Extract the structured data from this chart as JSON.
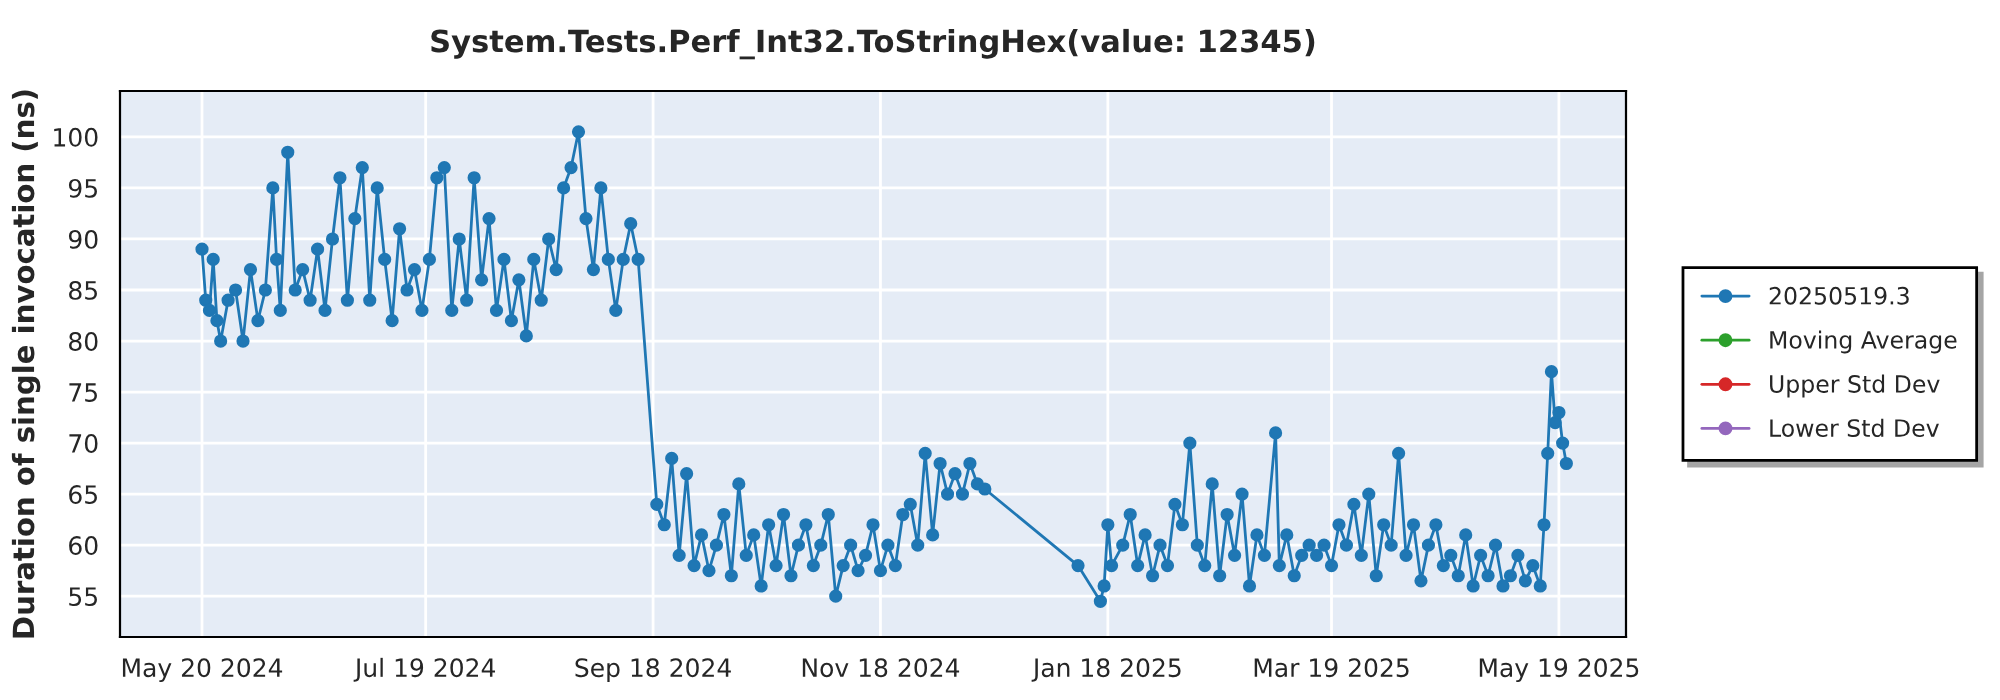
{
  "chart_data": {
    "type": "line",
    "title": "System.Tests.Perf_Int32.ToStringHex(value: 12345)",
    "ylabel": "Duration of single invocation (ns)",
    "x": [
      "2024-05-20",
      "2024-05-21",
      "2024-05-22",
      "2024-05-23",
      "2024-05-24",
      "2024-05-25",
      "2024-05-27",
      "2024-05-29",
      "2024-05-31",
      "2024-06-02",
      "2024-06-04",
      "2024-06-06",
      "2024-06-08",
      "2024-06-09",
      "2024-06-10",
      "2024-06-12",
      "2024-06-14",
      "2024-06-16",
      "2024-06-18",
      "2024-06-20",
      "2024-06-22",
      "2024-06-24",
      "2024-06-26",
      "2024-06-28",
      "2024-06-30",
      "2024-07-02",
      "2024-07-04",
      "2024-07-06",
      "2024-07-08",
      "2024-07-10",
      "2024-07-12",
      "2024-07-14",
      "2024-07-16",
      "2024-07-18",
      "2024-07-20",
      "2024-07-22",
      "2024-07-24",
      "2024-07-26",
      "2024-07-28",
      "2024-07-30",
      "2024-08-01",
      "2024-08-03",
      "2024-08-05",
      "2024-08-07",
      "2024-08-09",
      "2024-08-11",
      "2024-08-13",
      "2024-08-15",
      "2024-08-17",
      "2024-08-19",
      "2024-08-21",
      "2024-08-23",
      "2024-08-25",
      "2024-08-27",
      "2024-08-29",
      "2024-08-31",
      "2024-09-02",
      "2024-09-04",
      "2024-09-06",
      "2024-09-08",
      "2024-09-10",
      "2024-09-12",
      "2024-09-14",
      "2024-09-19",
      "2024-09-21",
      "2024-09-23",
      "2024-09-25",
      "2024-09-27",
      "2024-09-29",
      "2024-10-01",
      "2024-10-03",
      "2024-10-05",
      "2024-10-07",
      "2024-10-09",
      "2024-10-11",
      "2024-10-13",
      "2024-10-15",
      "2024-10-17",
      "2024-10-19",
      "2024-10-21",
      "2024-10-23",
      "2024-10-25",
      "2024-10-27",
      "2024-10-29",
      "2024-10-31",
      "2024-11-02",
      "2024-11-04",
      "2024-11-06",
      "2024-11-08",
      "2024-11-10",
      "2024-11-12",
      "2024-11-14",
      "2024-11-16",
      "2024-11-18",
      "2024-11-20",
      "2024-11-22",
      "2024-11-24",
      "2024-11-26",
      "2024-11-28",
      "2024-11-30",
      "2024-12-02",
      "2024-12-04",
      "2024-12-06",
      "2024-12-08",
      "2024-12-10",
      "2024-12-12",
      "2024-12-14",
      "2024-12-16",
      "2025-01-10",
      "2025-01-16",
      "2025-01-17",
      "2025-01-18",
      "2025-01-19",
      "2025-01-22",
      "2025-01-24",
      "2025-01-26",
      "2025-01-28",
      "2025-01-30",
      "2025-02-01",
      "2025-02-03",
      "2025-02-05",
      "2025-02-07",
      "2025-02-09",
      "2025-02-11",
      "2025-02-13",
      "2025-02-15",
      "2025-02-17",
      "2025-02-19",
      "2025-02-21",
      "2025-02-23",
      "2025-02-25",
      "2025-02-27",
      "2025-03-01",
      "2025-03-04",
      "2025-03-05",
      "2025-03-07",
      "2025-03-09",
      "2025-03-11",
      "2025-03-13",
      "2025-03-15",
      "2025-03-17",
      "2025-03-19",
      "2025-03-21",
      "2025-03-23",
      "2025-03-25",
      "2025-03-27",
      "2025-03-29",
      "2025-03-31",
      "2025-04-02",
      "2025-04-04",
      "2025-04-06",
      "2025-04-08",
      "2025-04-10",
      "2025-04-12",
      "2025-04-14",
      "2025-04-16",
      "2025-04-18",
      "2025-04-20",
      "2025-04-22",
      "2025-04-24",
      "2025-04-26",
      "2025-04-28",
      "2025-04-30",
      "2025-05-02",
      "2025-05-04",
      "2025-05-06",
      "2025-05-08",
      "2025-05-10",
      "2025-05-12",
      "2025-05-14",
      "2025-05-15",
      "2025-05-16",
      "2025-05-17",
      "2025-05-18",
      "2025-05-19",
      "2025-05-20",
      "2025-05-21"
    ],
    "series": [
      {
        "name": "20250519.3",
        "color": "#1f77b4",
        "values": [
          89,
          84,
          83,
          88,
          82,
          80,
          84,
          85,
          80,
          87,
          82,
          85,
          95,
          88,
          83,
          98.5,
          85,
          87,
          84,
          89,
          83,
          90,
          96,
          84,
          92,
          97,
          84,
          95,
          88,
          82,
          91,
          85,
          87,
          83,
          88,
          96,
          97,
          83,
          90,
          84,
          96,
          86,
          92,
          83,
          88,
          82,
          86,
          80.5,
          88,
          84,
          90,
          87,
          95,
          97,
          100.5,
          92,
          87,
          95,
          88,
          83,
          88,
          91.5,
          88,
          64,
          62,
          68.5,
          59,
          67,
          58,
          61,
          57.5,
          60,
          63,
          57,
          66,
          59,
          61,
          56,
          62,
          58,
          63,
          57,
          60,
          62,
          58,
          60,
          63,
          55,
          58,
          60,
          57.5,
          59,
          62,
          57.5,
          60,
          58,
          63,
          64,
          60,
          69,
          61,
          68,
          65,
          67,
          65,
          68,
          66,
          65.5,
          58,
          54.5,
          56,
          62,
          58,
          60,
          63,
          58,
          61,
          57,
          60,
          58,
          64,
          62,
          70,
          60,
          58,
          66,
          57,
          63,
          59,
          65,
          56,
          61,
          59,
          71,
          58,
          61,
          57,
          59,
          60,
          59,
          60,
          58,
          62,
          60,
          64,
          59,
          65,
          57,
          62,
          60,
          69,
          59,
          62,
          56.5,
          60,
          62,
          58,
          59,
          57,
          61,
          56,
          59,
          57,
          60,
          56,
          57,
          59,
          56.5,
          58,
          56,
          62,
          69,
          77,
          72,
          73,
          70,
          68
        ]
      },
      {
        "name": "Moving Average",
        "color": "#2ca02c",
        "values": [
          null,
          null,
          null,
          null,
          null,
          null,
          null,
          null,
          null,
          null,
          null,
          null,
          null,
          null,
          null,
          null,
          null,
          null,
          null,
          null,
          null,
          null,
          null,
          null,
          null,
          null,
          null,
          null,
          null,
          null,
          null,
          null,
          null,
          null,
          null,
          null,
          null,
          null,
          null,
          null,
          null,
          null,
          null,
          null,
          null,
          null,
          null,
          null,
          null,
          null,
          null,
          null,
          null,
          null,
          null,
          null,
          null,
          null,
          null,
          null,
          null,
          null,
          null,
          null,
          null,
          null,
          null,
          null,
          null,
          null,
          null,
          null,
          null,
          null,
          null,
          null,
          null,
          null,
          null,
          null,
          null,
          null,
          null,
          null,
          null,
          null,
          null,
          null,
          null,
          null,
          null,
          null,
          null,
          null,
          null,
          null,
          null,
          null,
          null,
          null,
          null,
          null,
          null,
          null,
          null,
          null,
          null,
          null,
          null,
          null,
          null,
          null,
          null,
          null,
          null,
          null,
          null,
          null,
          null,
          null,
          null,
          null,
          null,
          null,
          null,
          null,
          null,
          null,
          null,
          null,
          null,
          null,
          null,
          null,
          null,
          null,
          null,
          null,
          null,
          null,
          null,
          null,
          null,
          null,
          null,
          null,
          null,
          null,
          null,
          null,
          null,
          null,
          null,
          null,
          null,
          null,
          null,
          null,
          null,
          null,
          null,
          null,
          null,
          null,
          null,
          null,
          null,
          null,
          null,
          null,
          null,
          null,
          null,
          null,
          null,
          null,
          null
        ]
      },
      {
        "name": "Upper Std Dev",
        "color": "#d62728",
        "values": [
          null,
          null,
          null,
          null,
          null,
          null,
          null,
          null,
          null,
          null,
          null,
          null,
          null,
          null,
          null,
          null,
          null,
          null,
          null,
          null,
          null,
          null,
          null,
          null,
          null,
          null,
          null,
          null,
          null,
          null,
          null,
          null,
          null,
          null,
          null,
          null,
          null,
          null,
          null,
          null,
          null,
          null,
          null,
          null,
          null,
          null,
          null,
          null,
          null,
          null,
          null,
          null,
          null,
          null,
          null,
          null,
          null,
          null,
          null,
          null,
          null,
          null,
          null,
          null,
          null,
          null,
          null,
          null,
          null,
          null,
          null,
          null,
          null,
          null,
          null,
          null,
          null,
          null,
          null,
          null,
          null,
          null,
          null,
          null,
          null,
          null,
          null,
          null,
          null,
          null,
          null,
          null,
          null,
          null,
          null,
          null,
          null,
          null,
          null,
          null,
          null,
          null,
          null,
          null,
          null,
          null,
          null,
          null,
          null,
          null,
          null,
          null,
          null,
          null,
          null,
          null,
          null,
          null,
          null,
          null,
          null,
          null,
          null,
          null,
          null,
          null,
          null,
          null,
          null,
          null,
          null,
          null,
          null,
          null,
          null,
          null,
          null,
          null,
          null,
          null,
          null,
          null,
          null,
          null,
          null,
          null,
          null,
          null,
          null,
          null,
          null,
          null,
          null,
          null,
          null,
          null,
          null,
          null,
          null,
          null,
          null,
          null,
          null,
          null,
          null,
          null,
          null,
          null,
          null,
          null,
          null,
          null,
          null,
          null,
          null,
          null,
          null
        ]
      },
      {
        "name": "Lower Std Dev",
        "color": "#9467bd",
        "values": [
          null,
          null,
          null,
          null,
          null,
          null,
          null,
          null,
          null,
          null,
          null,
          null,
          null,
          null,
          null,
          null,
          null,
          null,
          null,
          null,
          null,
          null,
          null,
          null,
          null,
          null,
          null,
          null,
          null,
          null,
          null,
          null,
          null,
          null,
          null,
          null,
          null,
          null,
          null,
          null,
          null,
          null,
          null,
          null,
          null,
          null,
          null,
          null,
          null,
          null,
          null,
          null,
          null,
          null,
          null,
          null,
          null,
          null,
          null,
          null,
          null,
          null,
          null,
          null,
          null,
          null,
          null,
          null,
          null,
          null,
          null,
          null,
          null,
          null,
          null,
          null,
          null,
          null,
          null,
          null,
          null,
          null,
          null,
          null,
          null,
          null,
          null,
          null,
          null,
          null,
          null,
          null,
          null,
          null,
          null,
          null,
          null,
          null,
          null,
          null,
          null,
          null,
          null,
          null,
          null,
          null,
          null,
          null,
          null,
          null,
          null,
          null,
          null,
          null,
          null,
          null,
          null,
          null,
          null,
          null,
          null,
          null,
          null,
          null,
          null,
          null,
          null,
          null,
          null,
          null,
          null,
          null,
          null,
          null,
          null,
          null,
          null,
          null,
          null,
          null,
          null,
          null,
          null,
          null,
          null,
          null,
          null,
          null,
          null,
          null,
          null,
          null,
          null,
          null,
          null,
          null,
          null,
          null,
          null,
          null,
          null,
          null,
          null,
          null,
          null,
          null,
          null,
          null,
          null,
          null,
          null,
          null,
          null,
          null,
          null,
          null,
          null
        ]
      }
    ],
    "xlim": [
      "2024-04-28",
      "2025-06-06"
    ],
    "xticks": [
      {
        "value": "2024-05-20",
        "label": "May 20 2024"
      },
      {
        "value": "2024-07-19",
        "label": "Jul 19 2024"
      },
      {
        "value": "2024-09-18",
        "label": "Sep 18 2024"
      },
      {
        "value": "2024-11-18",
        "label": "Nov 18 2024"
      },
      {
        "value": "2025-01-18",
        "label": "Jan 18 2025"
      },
      {
        "value": "2025-03-19",
        "label": "Mar 19 2025"
      },
      {
        "value": "2025-05-19",
        "label": "May 19 2025"
      }
    ],
    "ylim": [
      51,
      104.5
    ],
    "yticks": [
      55,
      60,
      65,
      70,
      75,
      80,
      85,
      90,
      95,
      100
    ],
    "grid": true,
    "legend": "right",
    "marker": "circle",
    "line_style": "solid"
  }
}
